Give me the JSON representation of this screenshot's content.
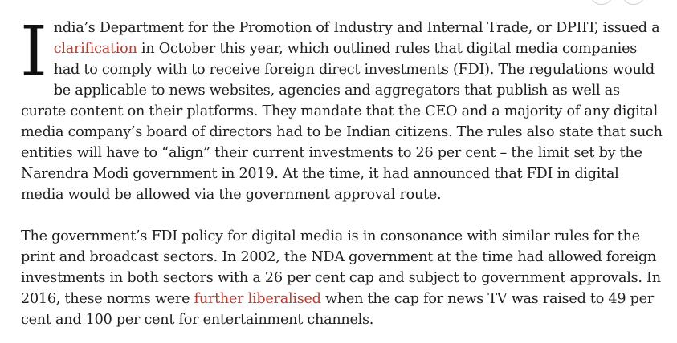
{
  "article": {
    "para1": {
      "dropcap": "I",
      "text_a": "ndia’s Department for the Promotion of Industry and Internal Trade, or DPIIT, issued a ",
      "link1": "clarification",
      "text_b": " in October this year, which outlined rules that digital media companies had to comply with to receive foreign direct investments (FDI). The regulations would be applicable to news websites, agencies and aggregators that publish as well as curate content on their platforms. They mandate that the CEO and a majority of any digital media company’s board of directors had to be Indian citizens. The rules also state that such entities will have to “align” their current investments to 26 per cent – the limit set by the Narendra Modi government in 2019. At the time, it had announced that FDI in digital media would be allowed via the government approval route."
    },
    "para2": {
      "text_a": "The government’s FDI policy for digital media is in consonance with similar rules for the print and broadcast sectors. In 2002, the NDA government at the time had allowed foreign investments in both sectors with a 26 per cent cap and subject to government approvals. In 2016, these norms were ",
      "link": "further liberalised",
      "text_b": " when the cap for news TV was raised to 49 per cent and 100 per cent for entertainment channels."
    },
    "link_color": "#c0392b"
  }
}
